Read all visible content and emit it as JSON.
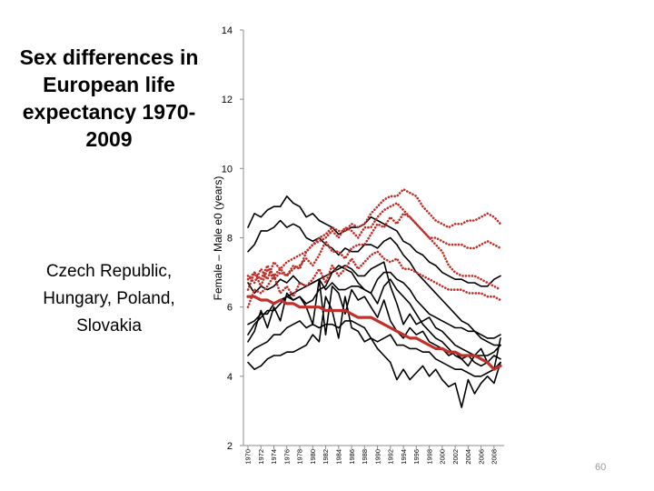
{
  "title": "Sex differences in European life expectancy 1970-2009",
  "subtitle": "Czech Republic, Hungary, Poland, Slovakia",
  "page_number": "60",
  "chart_data": {
    "type": "line",
    "ylabel": "Female – Male e0 (years)",
    "ylim": [
      2,
      14
    ],
    "yticks": [
      2,
      4,
      6,
      8,
      10,
      12,
      14
    ],
    "xlabels": [
      "1970",
      "1972",
      "1974",
      "1976",
      "1978",
      "1980",
      "1982",
      "1984",
      "1986",
      "1988",
      "1990",
      "1992",
      "1994",
      "1996",
      "1998",
      "2000",
      "2002",
      "2004",
      "2006",
      "2008"
    ],
    "x": [
      1970,
      1971,
      1972,
      1973,
      1974,
      1975,
      1976,
      1977,
      1978,
      1979,
      1980,
      1981,
      1982,
      1983,
      1984,
      1985,
      1986,
      1987,
      1988,
      1989,
      1990,
      1991,
      1992,
      1993,
      1994,
      1995,
      1996,
      1997,
      1998,
      1999,
      2000,
      2001,
      2002,
      2003,
      2004,
      2005,
      2006,
      2007,
      2008,
      2009
    ],
    "grid": false,
    "colors": {
      "black": "#000000",
      "red": "#c0302a",
      "axis": "#8c8c8c"
    },
    "series": [
      {
        "style": "solid-black",
        "values": [
          8.3,
          8.7,
          8.6,
          8.8,
          8.9,
          8.9,
          9.2,
          9.0,
          8.9,
          8.6,
          8.7,
          8.5,
          8.4,
          8.3,
          8.1,
          8.2,
          8.3,
          8.3,
          8.4,
          8.6,
          8.5,
          8.4,
          8.3,
          8.2,
          7.9,
          7.8,
          7.6,
          7.5,
          7.3,
          7.2,
          7.0,
          6.9,
          6.8,
          6.8,
          6.7,
          6.7,
          6.6,
          6.6,
          6.8,
          6.9
        ]
      },
      {
        "style": "solid-black",
        "values": [
          7.6,
          7.8,
          8.2,
          8.2,
          8.3,
          8.5,
          8.3,
          8.4,
          8.3,
          8.0,
          7.9,
          8.0,
          7.8,
          7.7,
          7.5,
          7.7,
          7.6,
          7.6,
          7.8,
          7.8,
          7.7,
          7.9,
          8.0,
          7.8,
          7.5,
          7.3,
          7.0,
          6.8,
          6.6,
          6.4,
          6.2,
          6.0,
          5.8,
          5.6,
          5.5,
          5.3,
          5.1,
          5.0,
          4.9,
          4.9
        ]
      },
      {
        "style": "solid-black",
        "values": [
          6.7,
          6.4,
          6.6,
          6.5,
          6.6,
          6.8,
          6.7,
          6.9,
          6.7,
          6.6,
          6.7,
          6.8,
          6.5,
          6.7,
          6.5,
          6.5,
          6.6,
          6.6,
          6.5,
          6.4,
          6.8,
          7.0,
          7.0,
          6.8,
          6.7,
          6.5,
          6.2,
          6.0,
          5.8,
          5.7,
          5.6,
          5.5,
          5.4,
          5.4,
          5.3,
          5.3,
          5.2,
          5.1,
          5.1,
          5.2
        ]
      },
      {
        "style": "solid-black",
        "values": [
          5.5,
          5.6,
          5.8,
          5.8,
          6.1,
          6.2,
          6.3,
          6.4,
          6.5,
          6.6,
          6.7,
          6.8,
          6.9,
          7.0,
          7.1,
          7.2,
          7.1,
          6.9,
          6.9,
          7.1,
          7.2,
          7.3,
          6.6,
          6.1,
          5.5,
          5.8,
          5.5,
          5.6,
          5.7,
          5.4,
          5.3,
          5.1,
          4.9,
          4.8,
          4.7,
          4.6,
          4.6,
          4.6,
          4.7,
          4.9
        ]
      },
      {
        "style": "solid-black",
        "values": [
          5.2,
          5.5,
          5.7,
          5.9,
          5.9,
          6.1,
          6.3,
          6.2,
          6.3,
          6.1,
          6.2,
          6.5,
          6.6,
          7.0,
          7.2,
          7.1,
          7.0,
          6.7,
          6.5,
          6.4,
          6.1,
          6.6,
          6.8,
          6.5,
          6.3,
          6.1,
          5.8,
          5.5,
          5.3,
          5.1,
          5.0,
          4.8,
          4.6,
          4.5,
          4.6,
          4.4,
          4.3,
          4.4,
          4.6,
          4.5
        ]
      },
      {
        "style": "solid-black",
        "values": [
          4.6,
          4.8,
          4.9,
          5.0,
          5.2,
          5.2,
          5.4,
          5.5,
          5.6,
          5.4,
          5.5,
          5.4,
          5.5,
          5.5,
          5.4,
          5.6,
          5.6,
          5.5,
          5.4,
          5.1,
          5.0,
          5.1,
          5.2,
          4.9,
          4.9,
          4.8,
          4.8,
          4.7,
          4.7,
          4.5,
          4.4,
          4.3,
          4.2,
          4.2,
          4.1,
          4.0,
          4.0,
          4.1,
          4.2,
          4.4
        ]
      },
      {
        "style": "solid-black",
        "values": [
          4.4,
          4.2,
          4.3,
          4.5,
          4.6,
          4.6,
          4.7,
          4.7,
          4.8,
          4.9,
          5.2,
          5.0,
          6.3,
          5.9,
          5.1,
          6.3,
          5.4,
          5.3,
          5.0,
          5.1,
          4.8,
          4.6,
          4.4,
          3.9,
          4.2,
          3.9,
          4.1,
          4.3,
          4.0,
          4.2,
          3.9,
          3.7,
          3.8,
          3.1,
          3.9,
          3.5,
          3.8,
          4.0,
          3.8,
          4.4
        ]
      },
      {
        "style": "solid-black",
        "values": [
          5.0,
          5.3,
          5.9,
          5.4,
          6.0,
          5.6,
          6.4,
          6.2,
          6.3,
          6.0,
          5.5,
          6.8,
          5.2,
          6.6,
          6.4,
          5.8,
          6.5,
          6.2,
          6.3,
          6.0,
          5.7,
          6.2,
          5.6,
          5.3,
          5.1,
          5.4,
          5.2,
          5.3,
          5.0,
          4.9,
          4.8,
          4.6,
          4.7,
          4.5,
          4.3,
          4.6,
          4.8,
          4.4,
          4.2,
          5.1
        ]
      },
      {
        "style": "dotted-red",
        "values": [
          6.5,
          7.0,
          6.8,
          7.2,
          6.9,
          7.1,
          6.9,
          7.2,
          7.1,
          7.6,
          7.8,
          8.0,
          8.1,
          8.3,
          8.2,
          8.2,
          8.4,
          8.3,
          8.4,
          8.7,
          8.9,
          9.1,
          9.2,
          9.2,
          9.4,
          9.3,
          9.2,
          8.9,
          8.7,
          8.5,
          8.4,
          8.3,
          8.4,
          8.4,
          8.5,
          8.5,
          8.6,
          8.7,
          8.6,
          8.4
        ]
      },
      {
        "style": "dotted-red",
        "values": [
          6.9,
          6.7,
          7.1,
          6.8,
          7.3,
          7.1,
          7.3,
          7.4,
          7.5,
          7.6,
          7.8,
          7.9,
          8.0,
          8.2,
          8.0,
          8.3,
          8.2,
          8.0,
          8.3,
          8.3,
          8.6,
          8.8,
          8.9,
          9.0,
          8.8,
          8.6,
          8.4,
          8.2,
          8.0,
          8.0,
          7.9,
          7.8,
          7.8,
          7.8,
          7.7,
          7.7,
          7.8,
          7.9,
          7.8,
          7.7
        ]
      },
      {
        "style": "dotted-red",
        "values": [
          6.8,
          7.0,
          6.6,
          7.1,
          6.8,
          7.0,
          6.9,
          7.1,
          7.2,
          7.4,
          7.2,
          7.5,
          7.9,
          7.6,
          7.6,
          7.4,
          7.7,
          7.8,
          7.8,
          8.1,
          8.4,
          8.3,
          8.6,
          8.4,
          8.7,
          8.6,
          8.4,
          8.2,
          8.0,
          7.8,
          7.6,
          7.2,
          7.0,
          6.9,
          6.9,
          6.9,
          6.8,
          6.7,
          6.6,
          6.5
        ]
      },
      {
        "style": "dotted-red",
        "values": [
          6.0,
          6.5,
          6.4,
          6.6,
          6.9,
          6.4,
          6.6,
          6.3,
          6.7,
          6.6,
          6.8,
          7.1,
          6.7,
          7.2,
          6.9,
          7.1,
          7.4,
          7.1,
          7.3,
          7.5,
          7.6,
          7.4,
          7.3,
          7.4,
          7.1,
          7.1,
          7.0,
          6.9,
          6.8,
          6.7,
          6.6,
          6.5,
          6.5,
          6.5,
          6.4,
          6.4,
          6.4,
          6.3,
          6.3,
          6.2
        ]
      },
      {
        "style": "average-red",
        "values": [
          6.3,
          6.3,
          6.2,
          6.2,
          6.1,
          6.2,
          6.1,
          6.1,
          6.0,
          6.0,
          6.0,
          6.0,
          5.9,
          5.9,
          5.9,
          5.9,
          5.8,
          5.7,
          5.7,
          5.7,
          5.6,
          5.5,
          5.4,
          5.3,
          5.2,
          5.1,
          5.1,
          5.0,
          4.9,
          4.8,
          4.8,
          4.7,
          4.7,
          4.6,
          4.6,
          4.6,
          4.5,
          4.4,
          4.2,
          4.3
        ]
      }
    ]
  }
}
